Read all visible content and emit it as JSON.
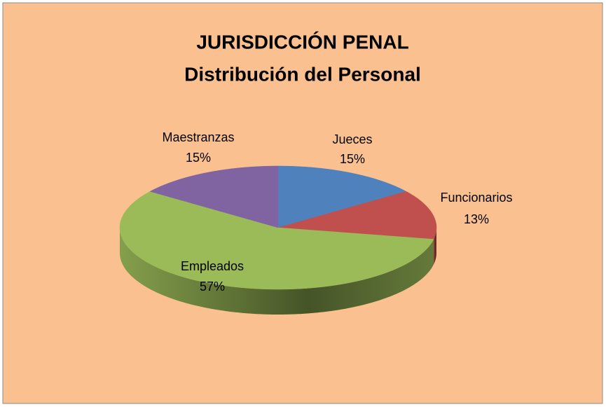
{
  "chart_data": {
    "type": "pie",
    "title": "JURISDICCIÓN PENAL",
    "subtitle": "Distribución del Personal",
    "categories": [
      "Jueces",
      "Funcionarios",
      "Empleados",
      "Maestranzas"
    ],
    "values": [
      15,
      13,
      57,
      15
    ],
    "value_labels": [
      "15%",
      "13%",
      "57%",
      "15%"
    ],
    "colors": [
      "#4f81bd",
      "#c0504d",
      "#9bbb59",
      "#8064a2"
    ]
  }
}
